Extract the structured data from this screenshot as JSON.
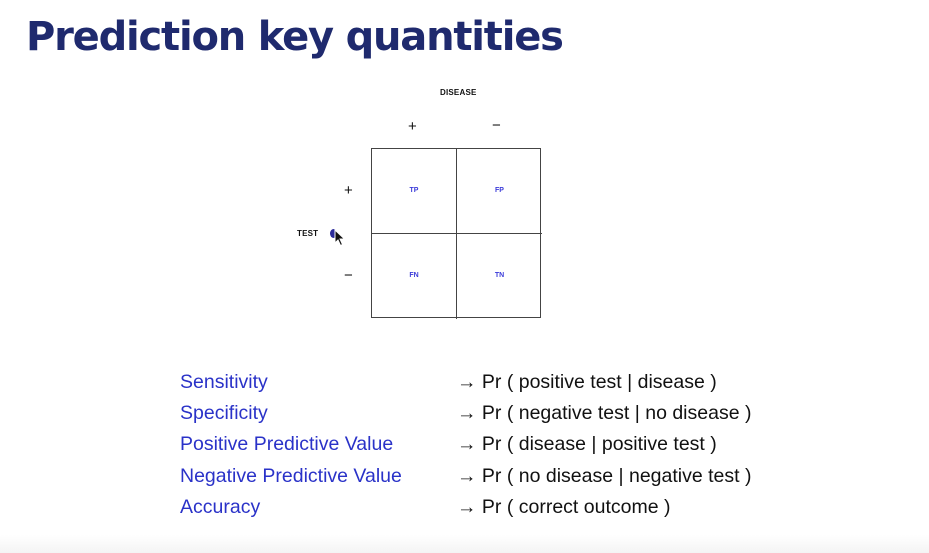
{
  "title": "Prediction key quantities",
  "table": {
    "column_header": "DISEASE",
    "row_header": "TEST",
    "column_signs": [
      "+",
      "−"
    ],
    "row_signs": [
      "+",
      "−"
    ],
    "cells": [
      "TP",
      "FP",
      "FN",
      "TN"
    ]
  },
  "definitions": [
    {
      "term": "Sensitivity",
      "formula": "→  Pr ( positive test | disease )"
    },
    {
      "term": "Specificity",
      "formula": "→  Pr ( negative test | no disease )"
    },
    {
      "term": "Positive Predictive Value",
      "formula": "→  Pr ( disease | positive test )"
    },
    {
      "term": "Negative Predictive Value",
      "formula": "→  Pr ( no disease | negative test )"
    },
    {
      "term": "Accuracy",
      "formula": "→  Pr ( correct outcome )"
    }
  ],
  "colors": {
    "title": "#1f2a6e",
    "term": "#2a32c8",
    "cell_label": "#3b3bd9"
  },
  "icons": [
    "mouse-cursor-icon"
  ]
}
